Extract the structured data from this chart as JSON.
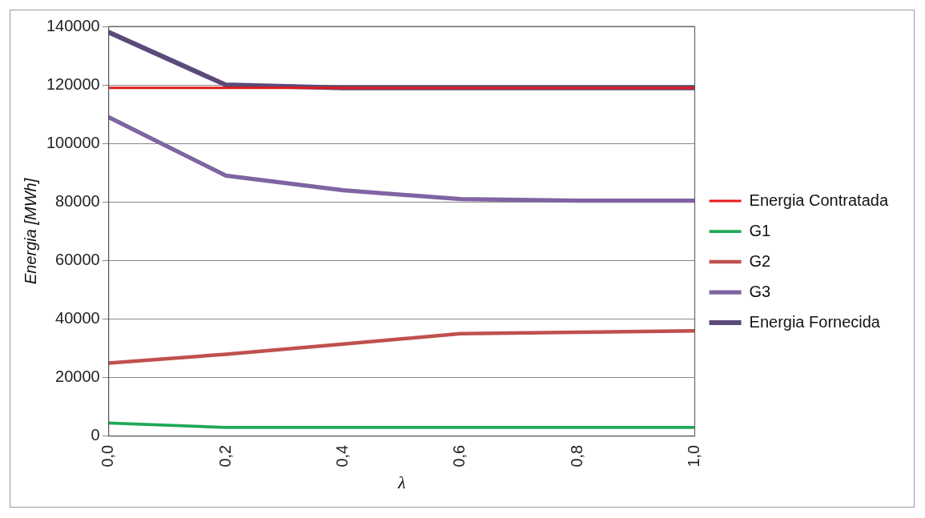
{
  "chart_data": {
    "type": "line",
    "xlabel": "λ",
    "ylabel": "Energia [MWh]",
    "x": [
      0,
      0.2,
      0.4,
      0.6,
      0.8,
      1.0
    ],
    "series": [
      {
        "name": "Energia Contratada",
        "color": "#e31a1c",
        "values": [
          119000,
          119000,
          119000,
          119000,
          119000,
          119000
        ]
      },
      {
        "name": "G1",
        "color": "#1fa855",
        "values": [
          4500,
          3000,
          3000,
          3000,
          3000,
          3000
        ]
      },
      {
        "name": "G2",
        "color": "#c0504d",
        "values": [
          25000,
          28000,
          31500,
          35000,
          35500,
          36000
        ]
      },
      {
        "name": "G3",
        "color": "#8064a2",
        "values": [
          109000,
          89000,
          84000,
          81000,
          80500,
          80500
        ]
      },
      {
        "name": "Energia Fornecida",
        "color": "#5b4a7a",
        "values": [
          138000,
          120000,
          119000,
          119000,
          119000,
          119000
        ]
      }
    ],
    "xlim": [
      0,
      1.0
    ],
    "xticks": [
      {
        "value": 0,
        "label": "0,0"
      },
      {
        "value": 0.2,
        "label": "0,2"
      },
      {
        "value": 0.4,
        "label": "0,4"
      },
      {
        "value": 0.6,
        "label": "0,6"
      },
      {
        "value": 0.8,
        "label": "0,8"
      },
      {
        "value": 1.0,
        "label": "1,0"
      }
    ],
    "ylim": [
      0,
      140000
    ],
    "yticks": [
      0,
      20000,
      40000,
      60000,
      80000,
      100000,
      120000,
      140000
    ],
    "grid": "y",
    "legend": "right",
    "marker": "none",
    "line_style": "solid"
  }
}
